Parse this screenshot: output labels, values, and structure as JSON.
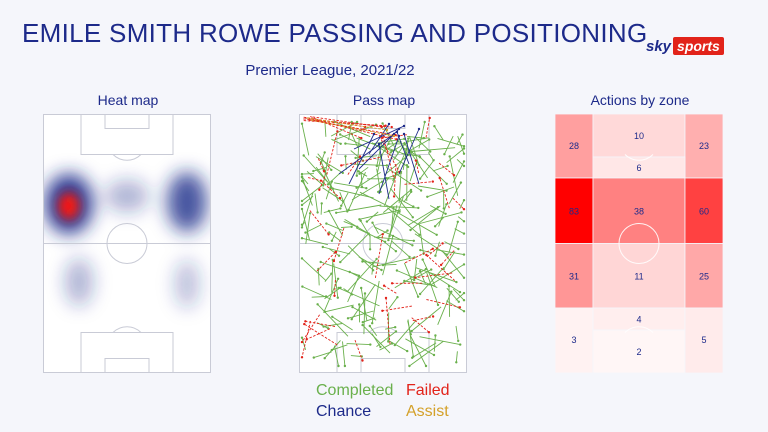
{
  "header": {
    "title": "EMILE SMITH ROWE PASSING AND POSITIONING",
    "subtitle": "Premier League, 2021/22",
    "logo": {
      "sky": "sky",
      "sports": "sports"
    }
  },
  "panels": {
    "heat_title": "Heat map",
    "pass_title": "Pass map",
    "zone_title": "Actions by zone"
  },
  "legend": {
    "completed": {
      "label": "Completed",
      "color": "#6ab04c"
    },
    "failed": {
      "label": "Failed",
      "color": "#e2231a"
    },
    "chance": {
      "label": "Chance",
      "color": "#1d2a8a"
    },
    "assist": {
      "label": "Assist",
      "color": "#d4a12a"
    }
  },
  "colors": {
    "title": "#1d2a8a",
    "pitch_line": "#c9cbd6",
    "zone_max": "#ff0000"
  },
  "chart_data": [
    {
      "type": "heatmap",
      "title": "Heat map",
      "hotspots": [
        {
          "area": "left wing, attacking half",
          "intensity": 1.0
        },
        {
          "area": "right wing, attacking half",
          "intensity": 0.75
        },
        {
          "area": "centre, attacking half",
          "intensity": 0.45
        },
        {
          "area": "left channel, defensive half",
          "intensity": 0.35
        },
        {
          "area": "right channel, defensive half",
          "intensity": 0.3
        }
      ]
    },
    {
      "type": "scatter",
      "title": "Pass map",
      "series": [
        {
          "name": "Completed",
          "count_estimate": 260
        },
        {
          "name": "Failed",
          "count_estimate": 45
        },
        {
          "name": "Chance",
          "count_estimate": 12
        },
        {
          "name": "Assist",
          "count_estimate": 2
        }
      ]
    },
    {
      "type": "heatmap",
      "title": "Actions by zone",
      "max": 83,
      "zones": [
        {
          "label": "28",
          "value": 28,
          "row": 0,
          "col": 0
        },
        {
          "label": "10",
          "value": 10,
          "row": 0,
          "col": 1
        },
        {
          "label": "23",
          "value": 23,
          "row": 0,
          "col": 2
        },
        {
          "label": "6",
          "value": 6,
          "row": 1,
          "col": 1
        },
        {
          "label": "83",
          "value": 83,
          "row": 2,
          "col": 0
        },
        {
          "label": "38",
          "value": 38,
          "row": 2,
          "col": 1
        },
        {
          "label": "60",
          "value": 60,
          "row": 2,
          "col": 2
        },
        {
          "label": "31",
          "value": 31,
          "row": 3,
          "col": 0
        },
        {
          "label": "11",
          "value": 11,
          "row": 3,
          "col": 1
        },
        {
          "label": "25",
          "value": 25,
          "row": 3,
          "col": 2
        },
        {
          "label": "4",
          "value": 4,
          "row": 4,
          "col": 1
        },
        {
          "label": "3",
          "value": 3,
          "row": 5,
          "col": 0
        },
        {
          "label": "2",
          "value": 2,
          "row": 5,
          "col": 1
        },
        {
          "label": "5",
          "value": 5,
          "row": 5,
          "col": 2
        }
      ]
    }
  ]
}
